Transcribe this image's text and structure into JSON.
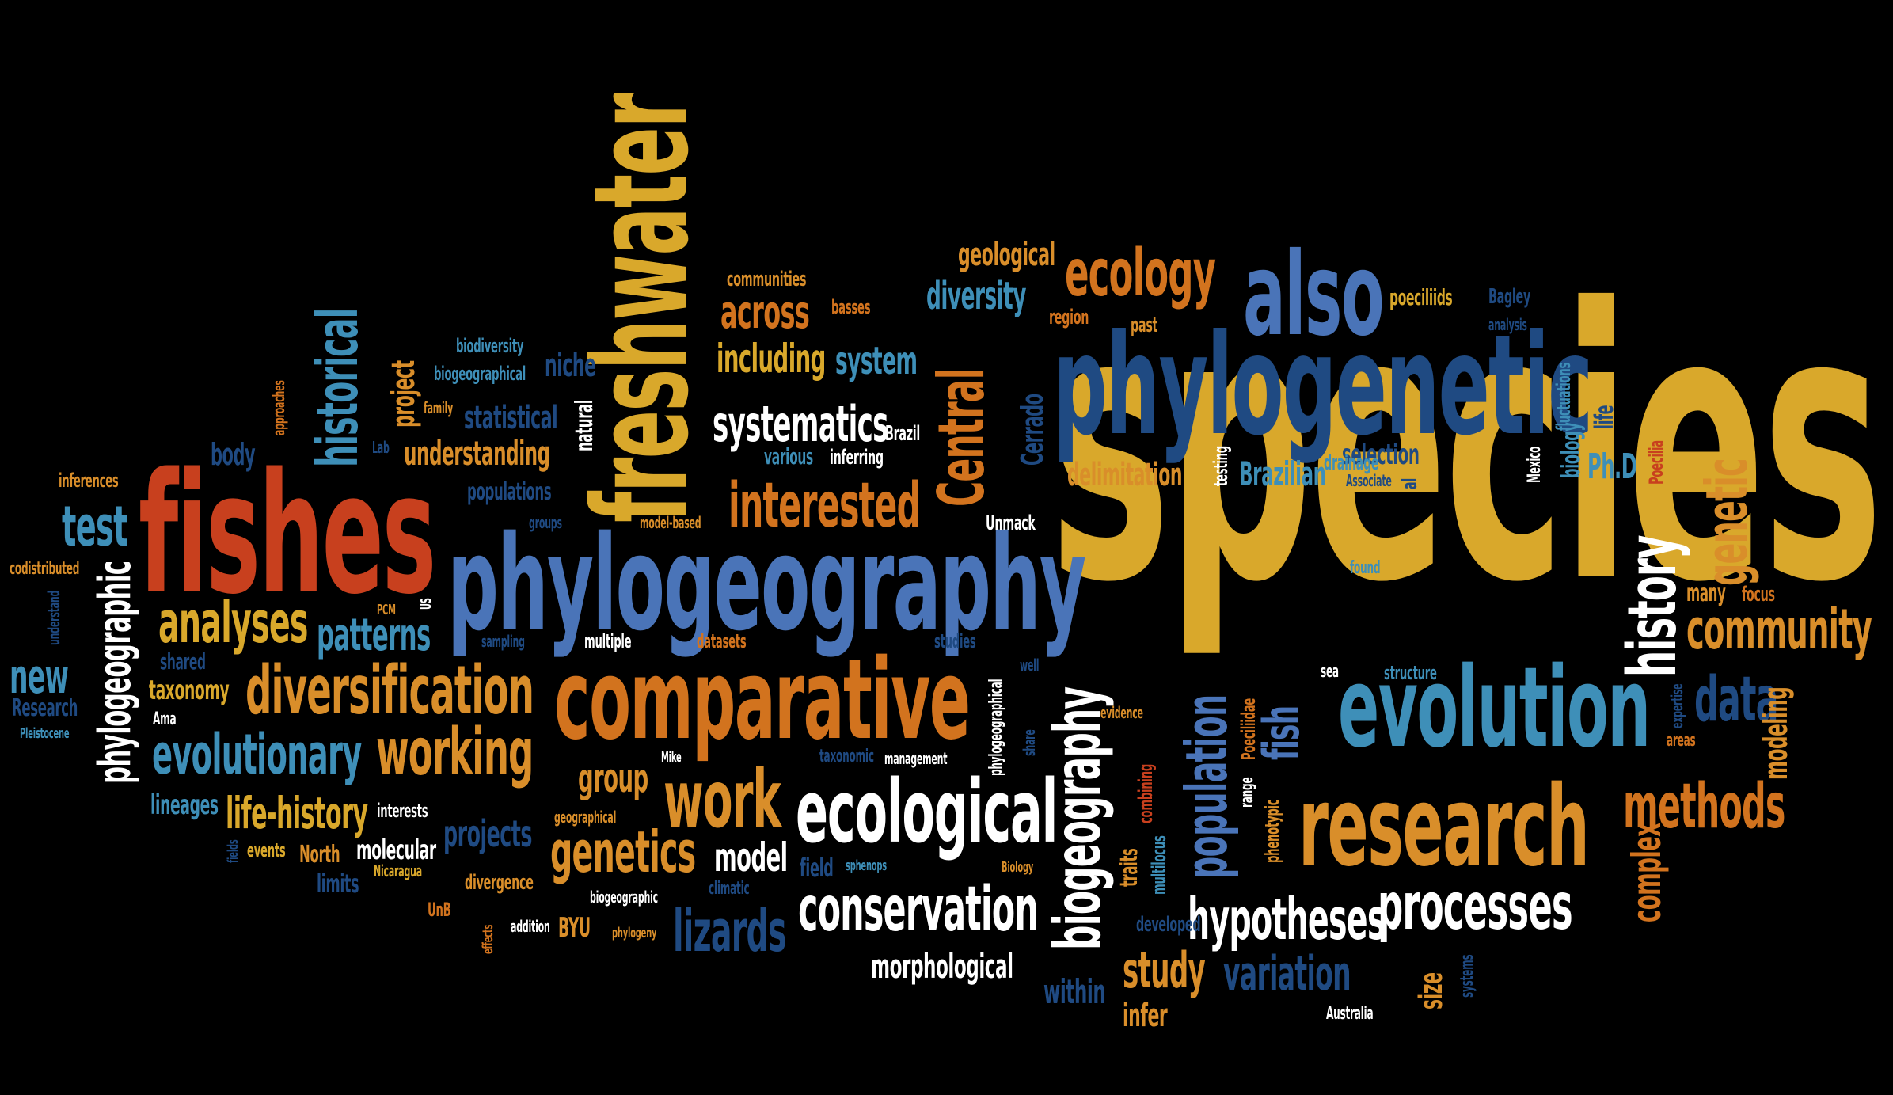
{
  "colors": {
    "background": "#000000",
    "gold": "#d9a82b",
    "orange": "#d2731e",
    "red": "#c8401e",
    "blue": "#4a74b8",
    "lightblue": "#3e8fb8",
    "navy": "#1f4a82",
    "white": "#ffffff",
    "cream": "#e7dcc6",
    "amber": "#d98e2a"
  },
  "words": [
    {
      "text": "species",
      "color": "gold"
    },
    {
      "text": "fishes",
      "color": "red"
    },
    {
      "text": "phylogeography",
      "color": "blue"
    },
    {
      "text": "freshwater",
      "color": "gold"
    },
    {
      "text": "phylogenetic",
      "color": "navy"
    },
    {
      "text": "evolution",
      "color": "lightblue"
    },
    {
      "text": "comparative",
      "color": "orange"
    },
    {
      "text": "research",
      "color": "amber"
    },
    {
      "text": "also",
      "color": "blue"
    },
    {
      "text": "ecological",
      "color": "white"
    },
    {
      "text": "historical",
      "color": "lightblue"
    },
    {
      "text": "diversification",
      "color": "amber"
    },
    {
      "text": "biogeography",
      "color": "white"
    },
    {
      "text": "Central",
      "color": "orange"
    },
    {
      "text": "history",
      "color": "white"
    },
    {
      "text": "ecology",
      "color": "orange"
    },
    {
      "text": "community",
      "color": "amber"
    },
    {
      "text": "working",
      "color": "amber"
    },
    {
      "text": "evolutionary",
      "color": "lightblue"
    },
    {
      "text": "interested",
      "color": "orange"
    },
    {
      "text": "work",
      "color": "amber"
    },
    {
      "text": "processes",
      "color": "white"
    },
    {
      "text": "conservation",
      "color": "white"
    },
    {
      "text": "hypotheses",
      "color": "white"
    },
    {
      "text": "population",
      "color": "blue"
    },
    {
      "text": "methods",
      "color": "orange"
    },
    {
      "text": "genetics",
      "color": "amber"
    },
    {
      "text": "analyses",
      "color": "gold"
    },
    {
      "text": "genetic",
      "color": "amber"
    },
    {
      "text": "systematics",
      "color": "white"
    },
    {
      "text": "data",
      "color": "navy"
    },
    {
      "text": "test",
      "color": "lightblue"
    },
    {
      "text": "new",
      "color": "lightblue"
    },
    {
      "text": "phylogeographic",
      "color": "white"
    },
    {
      "text": "patterns",
      "color": "lightblue"
    },
    {
      "text": "life-history",
      "color": "gold"
    },
    {
      "text": "fish",
      "color": "blue"
    },
    {
      "text": "lizards",
      "color": "navy"
    },
    {
      "text": "study",
      "color": "amber"
    },
    {
      "text": "variation",
      "color": "navy"
    },
    {
      "text": "across",
      "color": "orange"
    },
    {
      "text": "including",
      "color": "gold"
    },
    {
      "text": "system",
      "color": "lightblue"
    },
    {
      "text": "diversity",
      "color": "lightblue"
    },
    {
      "text": "geological",
      "color": "amber"
    },
    {
      "text": "group",
      "color": "amber"
    },
    {
      "text": "model",
      "color": "white"
    },
    {
      "text": "projects",
      "color": "navy"
    },
    {
      "text": "complex",
      "color": "orange"
    },
    {
      "text": "modeling",
      "color": "amber"
    },
    {
      "text": "Ph.D",
      "color": "lightblue"
    },
    {
      "text": "Brazilian",
      "color": "lightblue"
    },
    {
      "text": "delimitation",
      "color": "amber"
    },
    {
      "text": "selection",
      "color": "navy"
    },
    {
      "text": "morphological",
      "color": "white"
    },
    {
      "text": "understanding",
      "color": "amber"
    },
    {
      "text": "statistical",
      "color": "navy"
    },
    {
      "text": "project",
      "color": "amber"
    },
    {
      "text": "niche",
      "color": "navy"
    },
    {
      "text": "body",
      "color": "navy"
    },
    {
      "text": "inferences",
      "color": "amber"
    },
    {
      "text": "taxonomy",
      "color": "gold"
    },
    {
      "text": "lineages",
      "color": "lightblue"
    },
    {
      "text": "molecular",
      "color": "white"
    },
    {
      "text": "within",
      "color": "navy"
    },
    {
      "text": "infer",
      "color": "amber"
    },
    {
      "text": "size",
      "color": "amber"
    },
    {
      "text": "Cerrado",
      "color": "navy"
    },
    {
      "text": "natural",
      "color": "white"
    },
    {
      "text": "populations",
      "color": "navy"
    },
    {
      "text": "biodiversity",
      "color": "lightblue"
    },
    {
      "text": "biogeographical",
      "color": "lightblue"
    },
    {
      "text": "communities",
      "color": "amber"
    },
    {
      "text": "basses",
      "color": "orange"
    },
    {
      "text": "various",
      "color": "lightblue"
    },
    {
      "text": "inferring",
      "color": "white"
    },
    {
      "text": "Brazil",
      "color": "white"
    },
    {
      "text": "Unmack",
      "color": "white"
    },
    {
      "text": "poeciliids",
      "color": "gold"
    },
    {
      "text": "Bagley",
      "color": "navy"
    },
    {
      "text": "region",
      "color": "orange"
    },
    {
      "text": "past",
      "color": "amber"
    },
    {
      "text": "testing",
      "color": "white"
    },
    {
      "text": "drainage",
      "color": "lightblue"
    },
    {
      "text": "biology",
      "color": "lightblue"
    },
    {
      "text": "fluctuations",
      "color": "lightblue"
    },
    {
      "text": "life",
      "color": "navy"
    },
    {
      "text": "Poecilia",
      "color": "red"
    },
    {
      "text": "Mexico",
      "color": "white"
    },
    {
      "text": "Associate",
      "color": "navy"
    },
    {
      "text": "analysis",
      "color": "navy"
    },
    {
      "text": "al",
      "color": "navy"
    },
    {
      "text": "found",
      "color": "lightblue"
    },
    {
      "text": "many",
      "color": "amber"
    },
    {
      "text": "focus",
      "color": "orange"
    },
    {
      "text": "sea",
      "color": "white"
    },
    {
      "text": "structure",
      "color": "lightblue"
    },
    {
      "text": "expertise",
      "color": "navy"
    },
    {
      "text": "areas",
      "color": "orange"
    },
    {
      "text": "Poeciliidae",
      "color": "orange"
    },
    {
      "text": "range",
      "color": "white"
    },
    {
      "text": "phenotypic",
      "color": "amber"
    },
    {
      "text": "combining",
      "color": "red"
    },
    {
      "text": "traits",
      "color": "amber"
    },
    {
      "text": "multilocus",
      "color": "lightblue"
    },
    {
      "text": "developed",
      "color": "navy"
    },
    {
      "text": "evidence",
      "color": "amber"
    },
    {
      "text": "share",
      "color": "navy"
    },
    {
      "text": "well",
      "color": "navy"
    },
    {
      "text": "phylogeographical",
      "color": "white"
    },
    {
      "text": "management",
      "color": "white"
    },
    {
      "text": "taxonomic",
      "color": "navy"
    },
    {
      "text": "studies",
      "color": "navy"
    },
    {
      "text": "datasets",
      "color": "orange"
    },
    {
      "text": "multiple",
      "color": "white"
    },
    {
      "text": "sampling",
      "color": "navy"
    },
    {
      "text": "model-based",
      "color": "amber"
    },
    {
      "text": "groups",
      "color": "navy"
    },
    {
      "text": "US",
      "color": "white"
    },
    {
      "text": "PCM",
      "color": "amber"
    },
    {
      "text": "shared",
      "color": "navy"
    },
    {
      "text": "Ama",
      "color": "white"
    },
    {
      "text": "codistributed",
      "color": "amber"
    },
    {
      "text": "understand",
      "color": "navy"
    },
    {
      "text": "Research",
      "color": "navy"
    },
    {
      "text": "Pleistocene",
      "color": "lightblue"
    },
    {
      "text": "approaches",
      "color": "orange"
    },
    {
      "text": "family",
      "color": "amber"
    },
    {
      "text": "Lab",
      "color": "navy"
    },
    {
      "text": "interests",
      "color": "white"
    },
    {
      "text": "events",
      "color": "gold"
    },
    {
      "text": "fields",
      "color": "navy"
    },
    {
      "text": "North",
      "color": "amber"
    },
    {
      "text": "limits",
      "color": "navy"
    },
    {
      "text": "Nicaragua",
      "color": "gold"
    },
    {
      "text": "divergence",
      "color": "amber"
    },
    {
      "text": "UnB",
      "color": "orange"
    },
    {
      "text": "effects",
      "color": "orange"
    },
    {
      "text": "addition",
      "color": "white"
    },
    {
      "text": "BYU",
      "color": "amber"
    },
    {
      "text": "phylogeny",
      "color": "amber"
    },
    {
      "text": "biogeographic",
      "color": "white"
    },
    {
      "text": "climatic",
      "color": "navy"
    },
    {
      "text": "Mike",
      "color": "white"
    },
    {
      "text": "geographical",
      "color": "amber"
    },
    {
      "text": "field",
      "color": "navy"
    },
    {
      "text": "sphenops",
      "color": "lightblue"
    },
    {
      "text": "Biology",
      "color": "amber"
    },
    {
      "text": "systems",
      "color": "navy"
    },
    {
      "text": "Australia",
      "color": "white"
    }
  ]
}
